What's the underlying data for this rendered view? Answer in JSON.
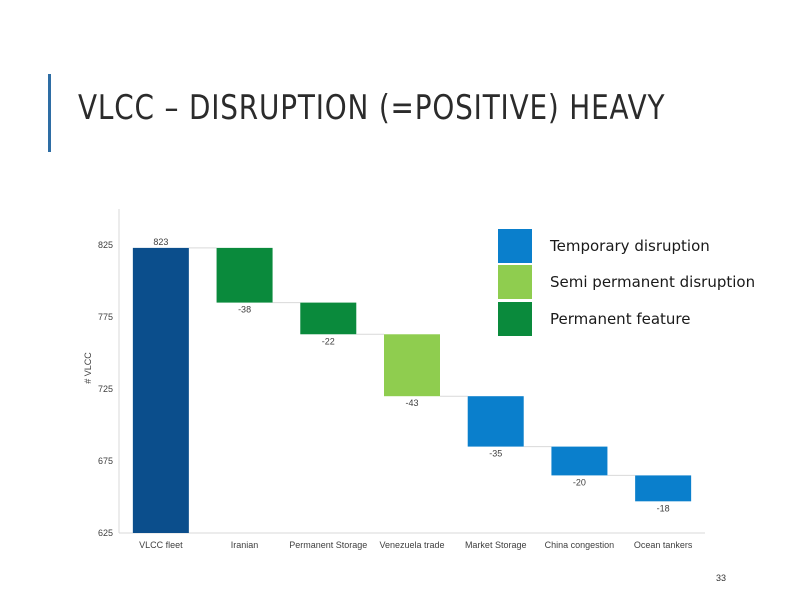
{
  "title": "VLCC – DISRUPTION (=POSITIVE) HEAVY",
  "page_number": "33",
  "colors": {
    "start_bar": "#0b4e8c",
    "temporary": "#0a7fcc",
    "semi_permanent": "#8fcd4f",
    "permanent": "#0a8a3c",
    "connector": "#d9d9d9",
    "axis_text": "#404040"
  },
  "legend": [
    {
      "label": "Temporary disruption",
      "category": "temporary",
      "color": "#0a7fcc"
    },
    {
      "label": "Semi permanent disruption",
      "category": "semi_permanent",
      "color": "#8fcd4f"
    },
    {
      "label": "Permanent feature",
      "category": "permanent",
      "color": "#0a8a3c"
    }
  ],
  "chart_data": {
    "type": "bar",
    "subtype": "waterfall",
    "title": "",
    "xlabel": "",
    "ylabel": "# VLCC",
    "ylim": [
      625,
      850
    ],
    "yticks": [
      625,
      675,
      725,
      775,
      825
    ],
    "grid": false,
    "legend_position": "top-right",
    "categories": [
      "VLCC fleet",
      "Iranian",
      "Permanent Storage",
      "Venezuela trade",
      "Market Storage",
      "China congestion",
      "Ocean tankers"
    ],
    "values": [
      823,
      -38,
      -22,
      -43,
      -35,
      -20,
      -18
    ],
    "data_labels": [
      "823",
      "-38",
      "-22",
      "-43",
      "-35",
      "-20",
      "-18"
    ],
    "bar_categories": [
      "total",
      "permanent",
      "permanent",
      "semi_permanent",
      "temporary",
      "temporary",
      "temporary"
    ]
  }
}
